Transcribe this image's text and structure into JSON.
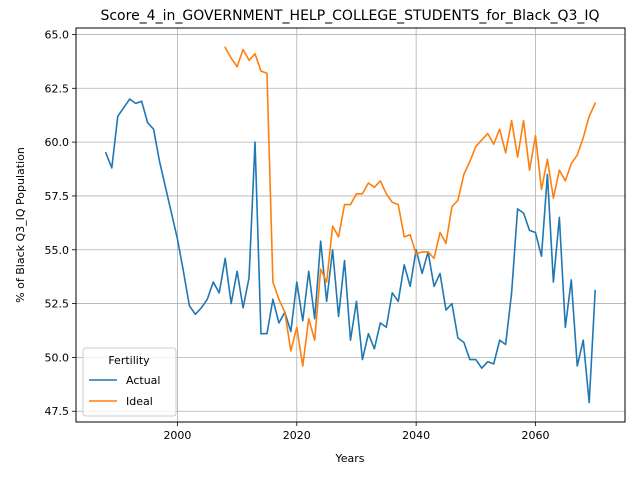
{
  "chart_data": {
    "type": "line",
    "title": "Score_4_in_GOVERNMENT_HELP_COLLEGE_STUDENTS_for_Black_Q3_IQ",
    "xlabel": "Years",
    "ylabel": "% of Black Q3_IQ Population",
    "xlim": [
      1983,
      2075
    ],
    "ylim": [
      47.0,
      65.3
    ],
    "xticks": [
      2000,
      2020,
      2040,
      2060
    ],
    "yticks": [
      47.5,
      50.0,
      52.5,
      55.0,
      57.5,
      60.0,
      62.5,
      65.0
    ],
    "xtick_labels": [
      "2000",
      "2020",
      "2040",
      "2060"
    ],
    "ytick_labels": [
      "47.5",
      "50.0",
      "52.5",
      "55.0",
      "57.5",
      "60.0",
      "62.5",
      "65.0"
    ],
    "grid": true,
    "legend": {
      "title": "Fertility",
      "placement": "lower-left"
    },
    "series": [
      {
        "name": "Actual",
        "color": "#1f77b4",
        "x": [
          1988,
          1989,
          1990,
          1991,
          1992,
          1993,
          1994,
          1995,
          1996,
          1997,
          1998,
          1999,
          2000,
          2001,
          2002,
          2003,
          2004,
          2005,
          2006,
          2007,
          2008,
          2009,
          2010,
          2011,
          2012,
          2013,
          2014,
          2015,
          2016,
          2017,
          2018,
          2019,
          2020,
          2021,
          2022,
          2023,
          2024,
          2025,
          2026,
          2027,
          2028,
          2029,
          2030,
          2031,
          2032,
          2033,
          2034,
          2035,
          2036,
          2037,
          2038,
          2039,
          2040,
          2041,
          2042,
          2043,
          2044,
          2045,
          2046,
          2047,
          2048,
          2049,
          2050,
          2051,
          2052,
          2053,
          2054,
          2055,
          2056,
          2057,
          2058,
          2059,
          2060,
          2061,
          2062,
          2063,
          2064,
          2065,
          2066,
          2067,
          2068,
          2069,
          2070
        ],
        "y": [
          59.5,
          58.8,
          61.2,
          61.6,
          62.0,
          61.8,
          61.9,
          60.9,
          60.6,
          59.1,
          57.9,
          56.7,
          55.5,
          54.0,
          52.4,
          52.0,
          52.3,
          52.7,
          53.5,
          53.0,
          54.6,
          52.5,
          54.0,
          52.3,
          53.7,
          60.0,
          51.1,
          51.1,
          52.7,
          51.6,
          52.1,
          51.2,
          53.5,
          51.7,
          54.0,
          51.8,
          55.4,
          52.6,
          55.0,
          51.9,
          54.5,
          50.8,
          52.6,
          49.9,
          51.1,
          50.4,
          51.6,
          51.4,
          53.0,
          52.6,
          54.3,
          53.3,
          55.0,
          53.9,
          54.9,
          53.3,
          53.9,
          52.2,
          52.5,
          50.9,
          50.7,
          49.9,
          49.9,
          49.5,
          49.8,
          49.7,
          50.8,
          50.6,
          53.0,
          56.9,
          56.7,
          55.9,
          55.8,
          54.7,
          58.5,
          53.5,
          56.5,
          51.4,
          53.6,
          49.6,
          50.8,
          47.9,
          53.1
        ]
      },
      {
        "name": "Ideal",
        "color": "#ff7f0e",
        "x": [
          2008,
          2009,
          2010,
          2011,
          2012,
          2013,
          2014,
          2015,
          2016,
          2017,
          2018,
          2019,
          2020,
          2021,
          2022,
          2023,
          2024,
          2025,
          2026,
          2027,
          2028,
          2029,
          2030,
          2031,
          2032,
          2033,
          2034,
          2035,
          2036,
          2037,
          2038,
          2039,
          2040,
          2041,
          2042,
          2043,
          2044,
          2045,
          2046,
          2047,
          2048,
          2049,
          2050,
          2051,
          2052,
          2053,
          2054,
          2055,
          2056,
          2057,
          2058,
          2059,
          2060,
          2061,
          2062,
          2063,
          2064,
          2065,
          2066,
          2067,
          2068,
          2069,
          2070
        ],
        "y": [
          64.4,
          63.9,
          63.5,
          64.3,
          63.8,
          64.1,
          63.3,
          63.2,
          53.5,
          52.7,
          52.1,
          50.3,
          51.4,
          49.6,
          51.8,
          50.8,
          54.1,
          53.5,
          56.1,
          55.6,
          57.1,
          57.1,
          57.6,
          57.6,
          58.1,
          57.9,
          58.2,
          57.6,
          57.2,
          57.1,
          55.6,
          55.7,
          54.8,
          54.9,
          54.9,
          54.6,
          55.8,
          55.3,
          57.0,
          57.3,
          58.5,
          59.1,
          59.8,
          60.1,
          60.4,
          59.9,
          60.6,
          59.5,
          61.0,
          59.3,
          61.0,
          58.7,
          60.3,
          57.8,
          59.2,
          57.4,
          58.7,
          58.2,
          59.0,
          59.4,
          60.2,
          61.2,
          61.8
        ]
      }
    ]
  }
}
